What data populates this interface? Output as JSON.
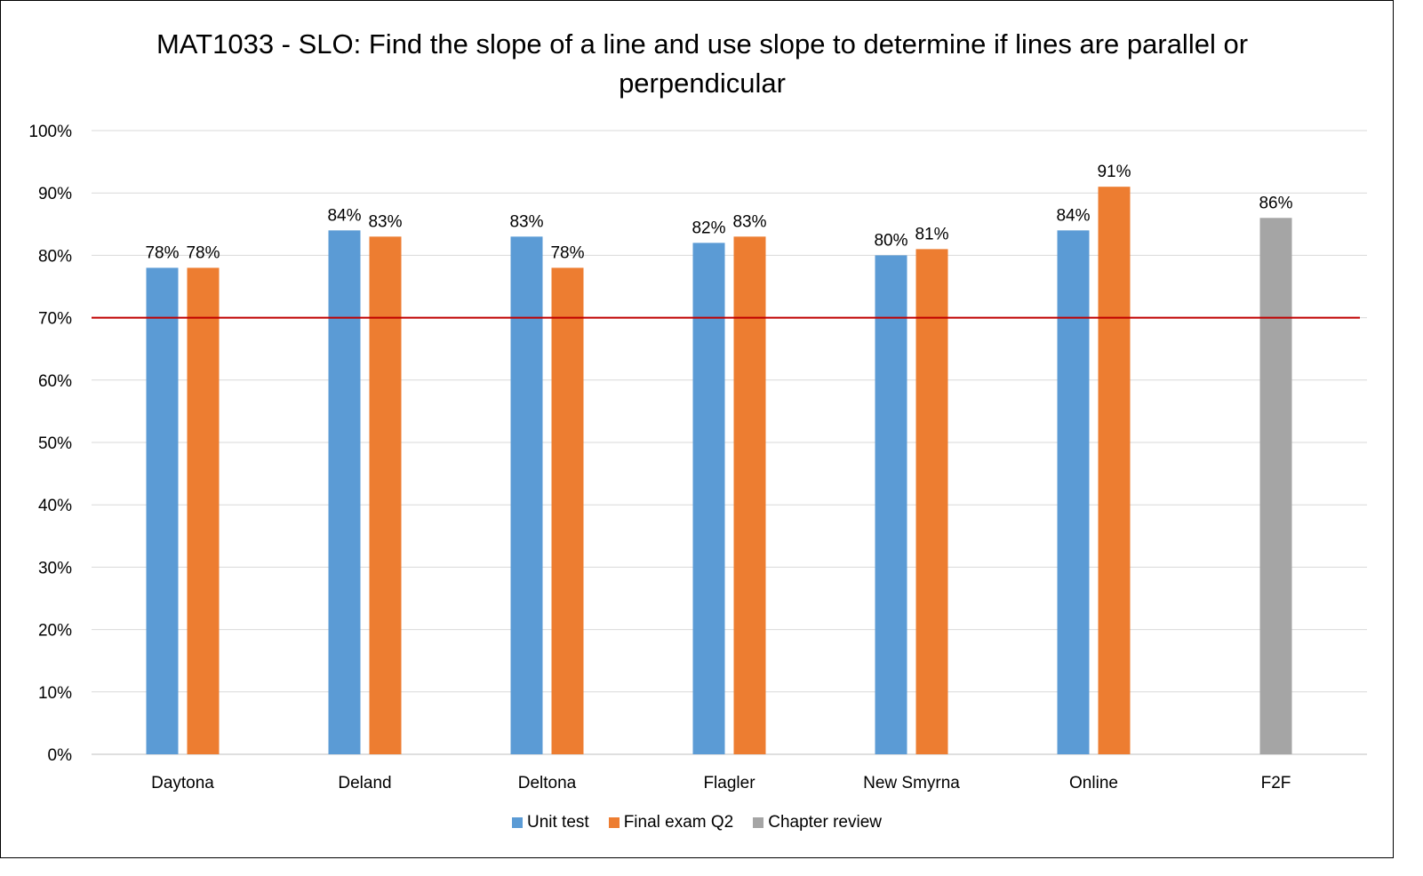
{
  "chart_data": {
    "type": "bar",
    "title": "MAT1033 - SLO: Find the slope of a line and use slope to determine if lines are parallel or perpendicular",
    "categories": [
      "Daytona",
      "Deland",
      "Deltona",
      "Flagler",
      "New Smyrna",
      "Online",
      "F2F"
    ],
    "series": [
      {
        "name": "Unit test",
        "color": "#5b9bd5",
        "values": [
          78,
          84,
          83,
          82,
          80,
          84,
          null
        ]
      },
      {
        "name": "Final exam Q2",
        "color": "#ed7d31",
        "values": [
          78,
          83,
          78,
          83,
          81,
          91,
          null
        ]
      },
      {
        "name": "Chapter review",
        "color": "#a5a5a5",
        "values": [
          null,
          null,
          null,
          null,
          null,
          null,
          86
        ]
      }
    ],
    "value_labels": {
      "Unit test": [
        "78%",
        "84%",
        "83%",
        "82%",
        "80%",
        "84%",
        ""
      ],
      "Final exam Q2": [
        "78%",
        "83%",
        "78%",
        "83%",
        "81%",
        "91%",
        ""
      ],
      "Chapter review": [
        "",
        "",
        "",
        "",
        "",
        "",
        "86%"
      ]
    },
    "ylim": [
      0,
      100
    ],
    "yticks": [
      "0%",
      "10%",
      "20%",
      "30%",
      "40%",
      "50%",
      "60%",
      "70%",
      "80%",
      "90%",
      "100%"
    ],
    "target_line": {
      "value": 70,
      "color": "#c00000"
    },
    "grid": true,
    "legend_position": "bottom",
    "xlabel": "",
    "ylabel": ""
  }
}
